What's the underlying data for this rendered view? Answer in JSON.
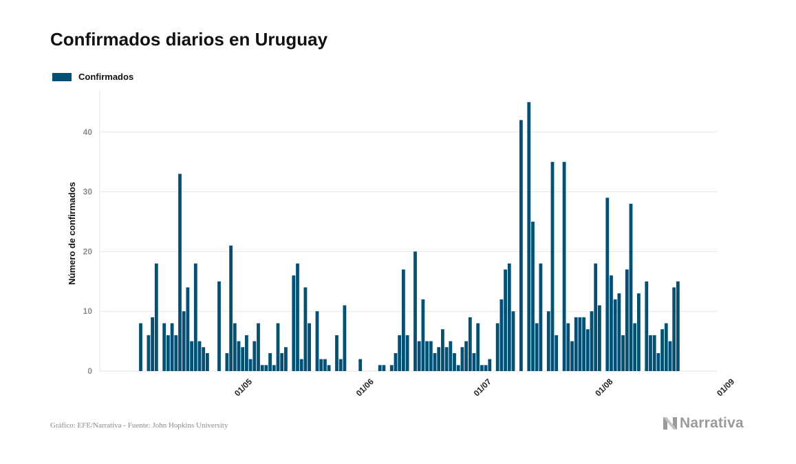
{
  "colors": {
    "bar": "#005078",
    "grid": "#e6e6e6",
    "axis_text": "#8c8c8c",
    "logo": "#9a9a9a"
  },
  "chart_data": {
    "type": "bar",
    "title": "Confirmados diarios en Uruguay",
    "xlabel": "",
    "ylabel": "Número de confirmados",
    "legend": {
      "position": "top-left",
      "entries": [
        "Confirmados"
      ]
    },
    "grid": true,
    "ylim": [
      0,
      47
    ],
    "yticks": [
      0,
      10,
      20,
      30,
      40
    ],
    "x_start_date": "2020-04-01",
    "xtick_labels": [
      {
        "label": "01/05",
        "date": "2020-05-01"
      },
      {
        "label": "01/06",
        "date": "2020-06-01"
      },
      {
        "label": "01/07",
        "date": "2020-07-01"
      },
      {
        "label": "01/08",
        "date": "2020-08-01"
      },
      {
        "label": "01/09",
        "date": "2020-09-01"
      }
    ],
    "series": [
      {
        "name": "Confirmados",
        "values": [
          0,
          0,
          0,
          8,
          0,
          6,
          9,
          18,
          0,
          8,
          6,
          8,
          6,
          33,
          10,
          14,
          5,
          18,
          5,
          4,
          3,
          0,
          0,
          15,
          0,
          3,
          21,
          8,
          5,
          4,
          6,
          2,
          5,
          8,
          1,
          1,
          3,
          1,
          8,
          3,
          4,
          0,
          16,
          18,
          2,
          14,
          8,
          0,
          10,
          2,
          2,
          1,
          0,
          6,
          2,
          11,
          0,
          0,
          0,
          2,
          0,
          0,
          0,
          0,
          1,
          1,
          0,
          1,
          3,
          6,
          17,
          6,
          0,
          20,
          5,
          12,
          5,
          5,
          3,
          4,
          7,
          4,
          5,
          3,
          1,
          4,
          5,
          9,
          3,
          8,
          1,
          1,
          2,
          0,
          8,
          12,
          17,
          18,
          10,
          0,
          42,
          0,
          45,
          25,
          8,
          18,
          0,
          10,
          35,
          6,
          0,
          35,
          8,
          5,
          9,
          9,
          9,
          7,
          10,
          18,
          11,
          0,
          29,
          16,
          12,
          13,
          6,
          17,
          28,
          8,
          13,
          0,
          15,
          6,
          6,
          3,
          7,
          8,
          5,
          14,
          15
        ]
      }
    ]
  },
  "source_text": "Gráfico: EFE/Narrativa - Fuente: John Hopkins University",
  "logo": {
    "text": "Narrativa"
  }
}
